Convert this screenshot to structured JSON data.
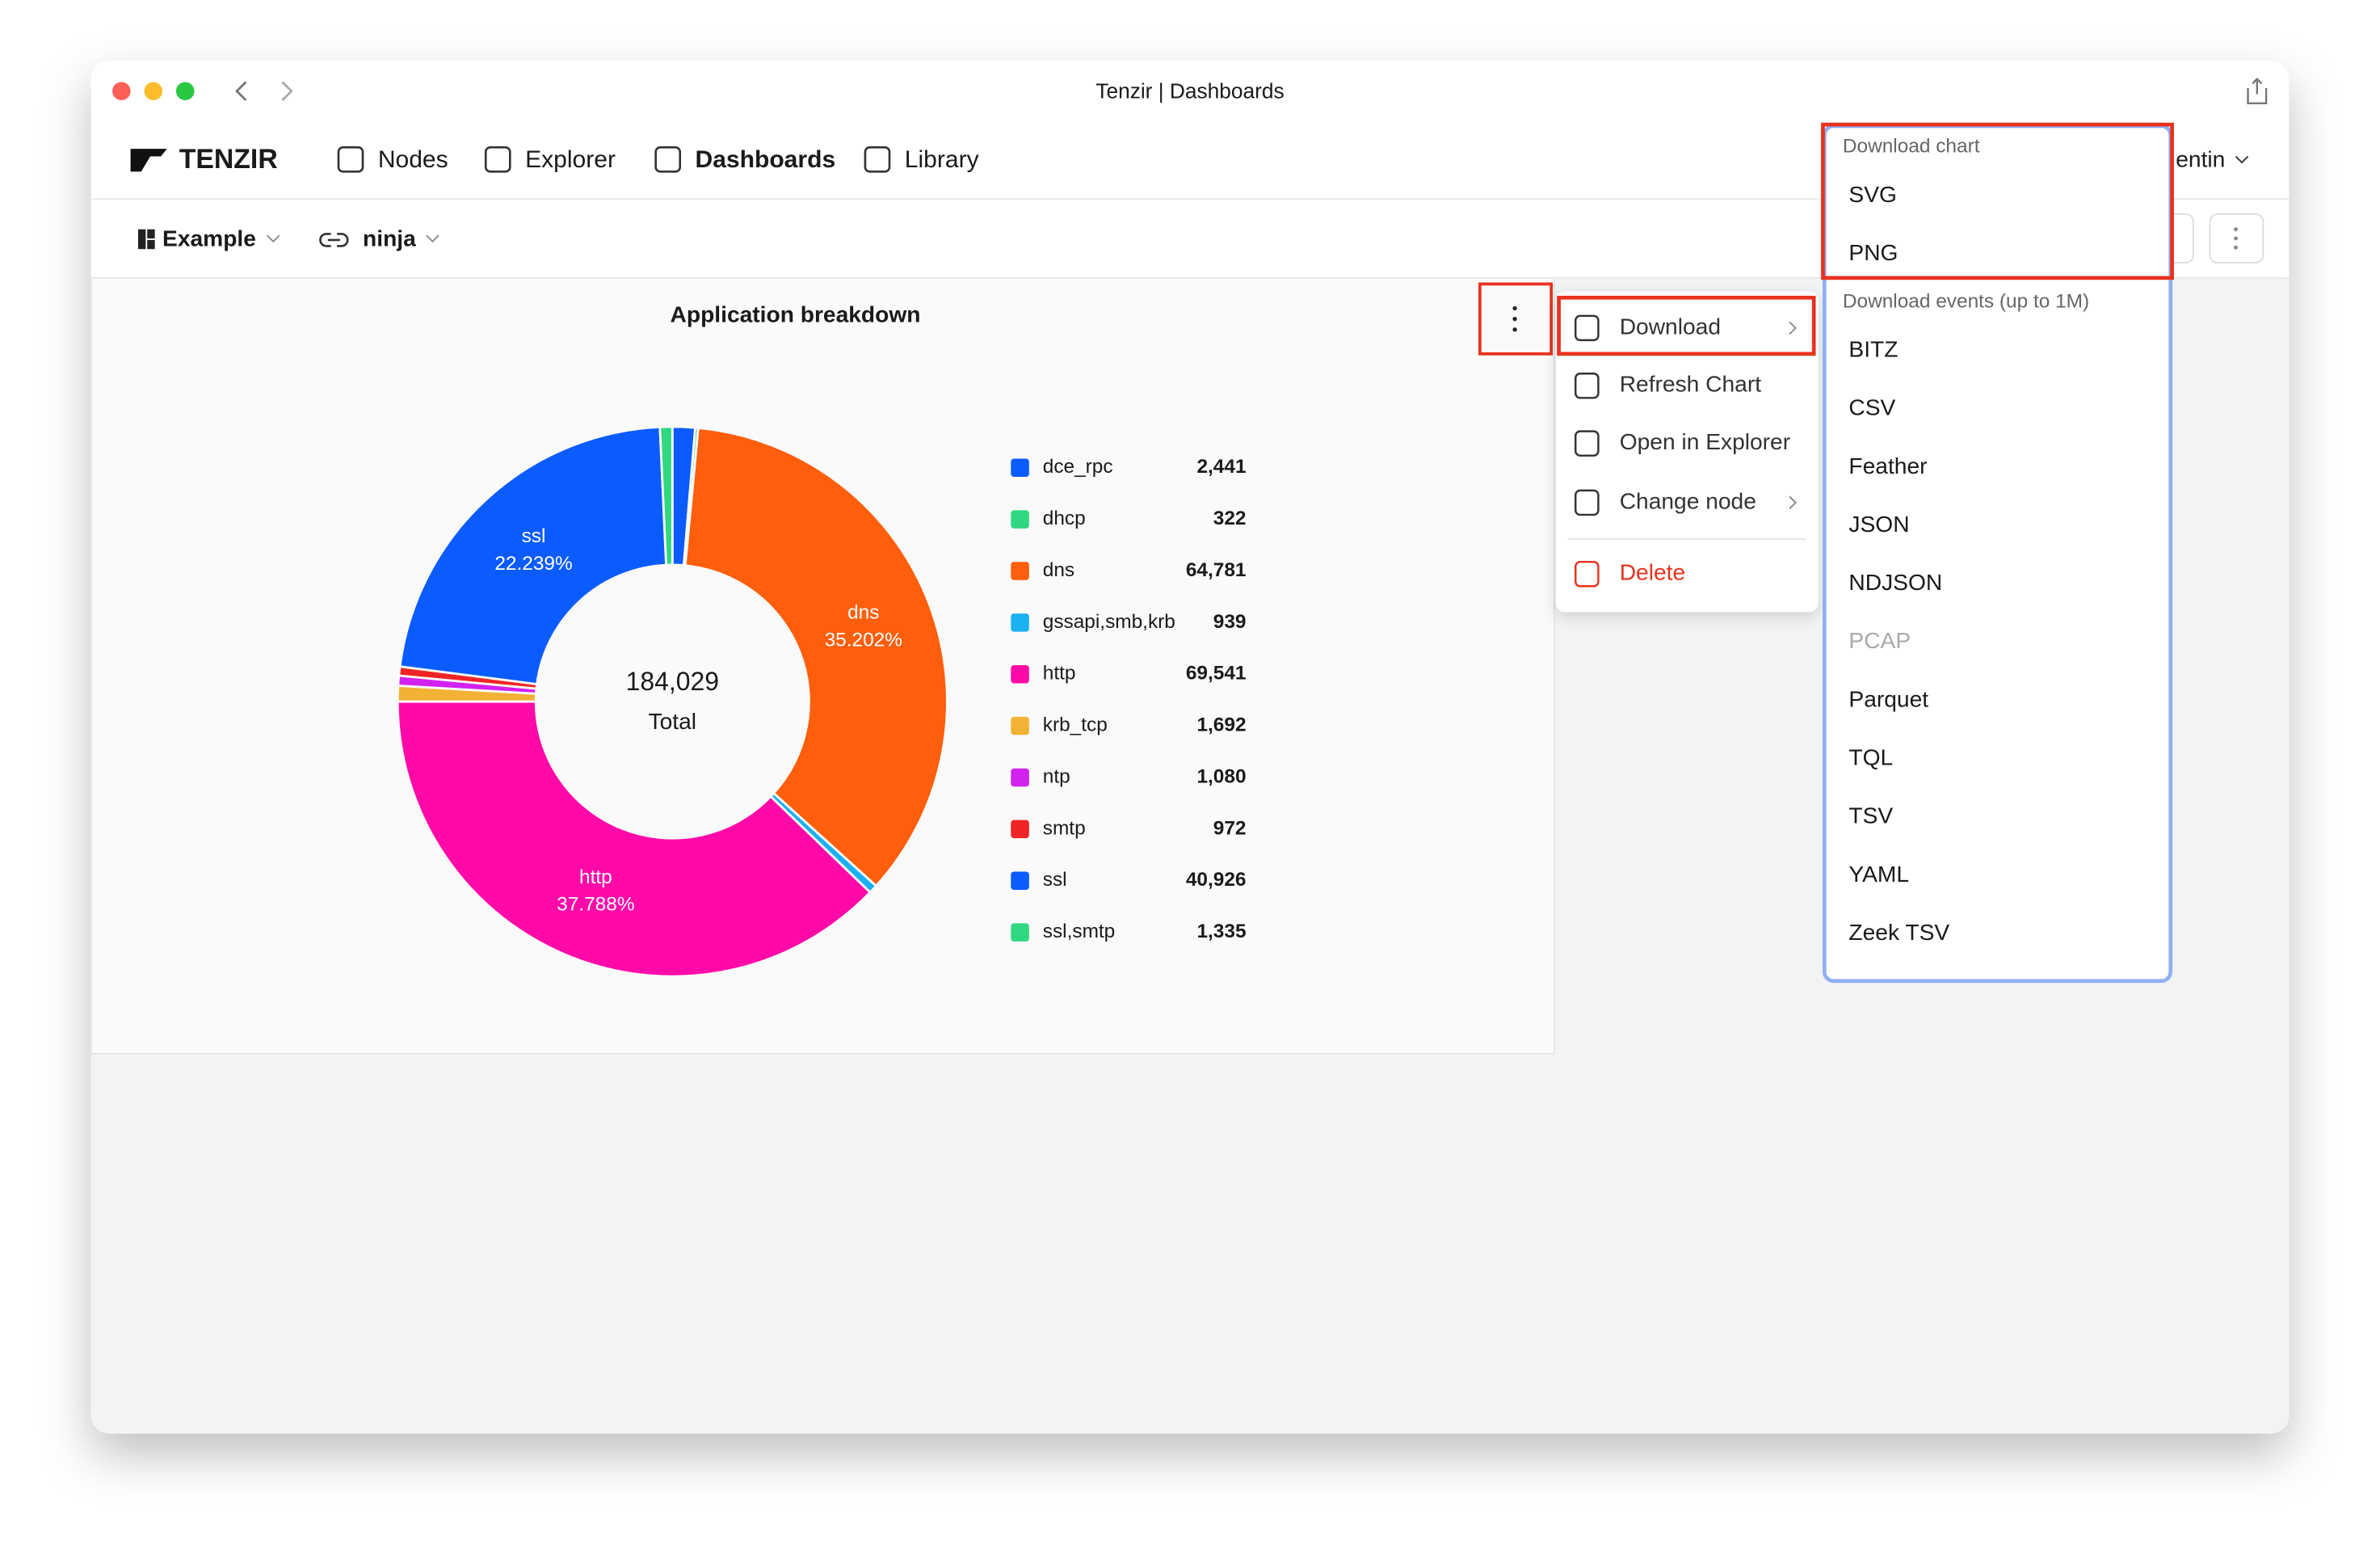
{
  "window_title": "Tenzir | Dashboards",
  "nav": {
    "logo": "TENZIR",
    "items": [
      "Nodes",
      "Explorer",
      "Dashboards",
      "Library"
    ],
    "active": "Dashboards",
    "user": "entin"
  },
  "toolbar": {
    "dashboard": "Example",
    "node": "ninja"
  },
  "chart_data": {
    "type": "pie",
    "title": "Application breakdown",
    "categories": [
      "dce_rpc",
      "dhcp",
      "dns",
      "gssapi,smb,krb",
      "http",
      "krb_tcp",
      "ntp",
      "smtp",
      "ssl",
      "ssl,smtp"
    ],
    "values": [
      2441,
      322,
      64781,
      939,
      69541,
      1692,
      1080,
      972,
      40926,
      1335
    ],
    "value_labels": [
      "2,441",
      "322",
      "64,781",
      "939",
      "69,541",
      "1,692",
      "1,080",
      "972",
      "40,926",
      "1,335"
    ],
    "colors": [
      "#0b5cff",
      "#2fd880",
      "#ff5e0c",
      "#1ab0f2",
      "#ff0aa9",
      "#f2b233",
      "#d222f0",
      "#f02424",
      "#0b5cff",
      "#2fd880"
    ],
    "slice_labels": [
      null,
      null,
      "35.202%",
      null,
      "37.788%",
      null,
      null,
      null,
      "22.239%",
      null
    ],
    "total": {
      "value": 184029,
      "label": "184,029"
    },
    "total_label": "Total"
  },
  "menu": {
    "items": [
      "Download",
      "Refresh Chart",
      "Open in Explorer",
      "Change node",
      "Delete"
    ]
  },
  "submenu": {
    "chart_header": "Download chart",
    "chart_formats": [
      "SVG",
      "PNG"
    ],
    "events_header": "Download events (up to 1M)",
    "event_formats": [
      "BITZ",
      "CSV",
      "Feather",
      "JSON",
      "NDJSON",
      "PCAP",
      "Parquet",
      "TQL",
      "TSV",
      "YAML",
      "Zeek TSV"
    ],
    "disabled": [
      "PCAP"
    ]
  }
}
